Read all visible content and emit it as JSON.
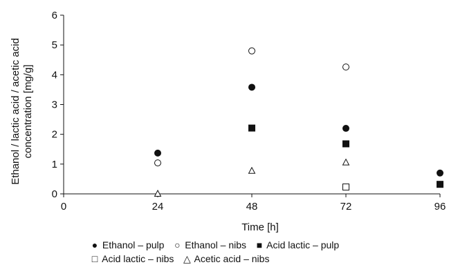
{
  "chart_data": {
    "type": "scatter",
    "title": "",
    "xlabel": "Time [h]",
    "ylabel_lines": [
      "Ethanol / lactic acid / acetic acid",
      "concentration [mg/g]"
    ],
    "xlim": [
      0,
      96
    ],
    "ylim": [
      0,
      6
    ],
    "xticks": [
      "0",
      "24",
      "48",
      "72",
      "96"
    ],
    "yticks": [
      "0",
      "1",
      "2",
      "3",
      "4",
      "5",
      "6"
    ],
    "grid": false,
    "legend_position": "bottom",
    "series": [
      {
        "name": "Ethanol – pulp",
        "marker": "filled-circle",
        "glyph": "●",
        "color": "#111111",
        "points": [
          [
            24,
            1.37
          ],
          [
            48,
            3.58
          ],
          [
            72,
            2.2
          ],
          [
            96,
            0.7
          ]
        ]
      },
      {
        "name": "Ethanol – nibs",
        "marker": "open-circle",
        "glyph": "○",
        "color": "#111111",
        "points": [
          [
            24,
            1.04
          ],
          [
            48,
            4.8
          ],
          [
            72,
            4.26
          ]
        ]
      },
      {
        "name": "Acid lactic – pulp",
        "marker": "filled-square",
        "glyph": "■",
        "color": "#111111",
        "points": [
          [
            48,
            2.21
          ],
          [
            72,
            1.68
          ],
          [
            96,
            0.32
          ]
        ]
      },
      {
        "name": "Acid lactic – nibs",
        "marker": "open-square",
        "glyph": "□",
        "color": "#111111",
        "points": [
          [
            72,
            0.23
          ]
        ]
      },
      {
        "name": "Acetic acid – nibs",
        "marker": "open-triangle",
        "glyph": "△",
        "color": "#111111",
        "points": [
          [
            24,
            0.0
          ],
          [
            48,
            0.77
          ],
          [
            72,
            1.05
          ]
        ]
      }
    ]
  }
}
